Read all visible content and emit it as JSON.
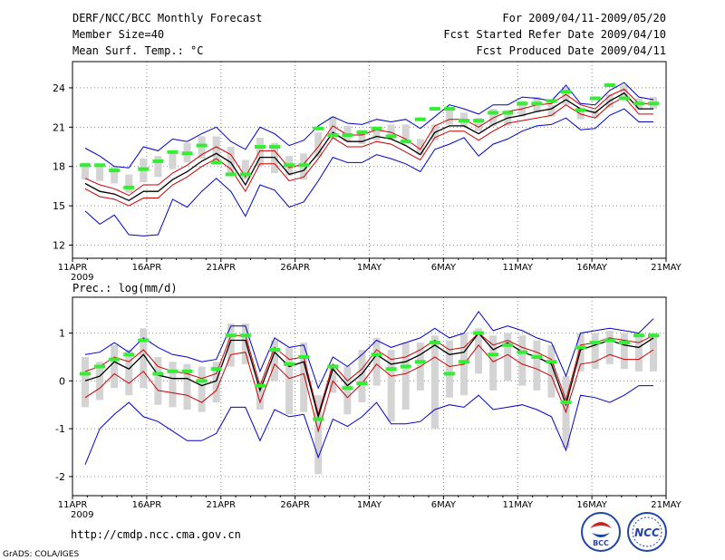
{
  "header": {
    "title": "DERF/NCC/BCC Monthly Forecast",
    "member_size": "Member Size=40",
    "variable": "Mean Surf. Temp.: °C",
    "forecast_period": "For 2009/04/11-2009/05/20",
    "fcst_started": "Fcst Started Refer Date 2009/04/10",
    "fcst_produced": "Fcst Produced Date 2009/04/11"
  },
  "footer": {
    "url": "http://cmdp.ncc.cma.gov.cn",
    "grads": "GrADS: COLA/IGES",
    "logo1_text": "BCC",
    "logo2_text": "NCC"
  },
  "colors": {
    "ens_mean": "#000000",
    "spread": "#cc0000",
    "extreme": "#0000cc",
    "box": "#d4d4d4",
    "marker": "#33ee33",
    "grid": "#888888"
  },
  "chart_data": [
    {
      "type": "line",
      "name": "temperature",
      "title": "Mean Surf. Temp.: °C",
      "xtick_labels": [
        "11APR",
        "16APR",
        "21APR",
        "26APR",
        "1MAY",
        "6MAY",
        "11MAY",
        "16MAY",
        "21MAY"
      ],
      "xtick_days": [
        0,
        5,
        10,
        15,
        20,
        25,
        30,
        35,
        40
      ],
      "year_label": "2009",
      "ylim": [
        11,
        26
      ],
      "yticks": [
        12,
        15,
        18,
        21,
        24
      ],
      "ytick_labels": [
        "12",
        "15",
        "18",
        "21",
        "24"
      ],
      "mean": [
        16.7,
        16.1,
        15.9,
        15.4,
        16.1,
        16.1,
        17.0,
        17.6,
        18.4,
        19.0,
        18.3,
        16.6,
        18.7,
        18.7,
        17.4,
        17.7,
        19.0,
        20.6,
        19.9,
        19.9,
        20.3,
        20.1,
        19.6,
        18.9,
        20.6,
        21.1,
        21.1,
        20.5,
        21.2,
        21.7,
        21.9,
        22.2,
        22.4,
        23.1,
        22.4,
        22.1,
        23.0,
        23.6,
        22.4,
        22.4
      ],
      "upper": [
        17.1,
        16.6,
        16.3,
        15.8,
        16.6,
        16.6,
        17.5,
        18.1,
        18.9,
        19.5,
        18.9,
        17.2,
        19.2,
        19.2,
        17.9,
        18.2,
        19.5,
        21.1,
        20.4,
        20.4,
        20.8,
        20.6,
        20.1,
        19.3,
        21.1,
        21.6,
        21.6,
        21.0,
        21.7,
        22.2,
        22.4,
        22.7,
        22.8,
        23.5,
        22.7,
        22.4,
        23.4,
        23.9,
        22.8,
        22.8
      ],
      "lower": [
        16.3,
        15.7,
        15.5,
        15.0,
        15.6,
        15.6,
        16.6,
        17.2,
        18.0,
        18.6,
        17.8,
        16.1,
        18.2,
        18.2,
        16.9,
        17.2,
        18.6,
        20.2,
        19.5,
        19.5,
        19.9,
        19.7,
        19.1,
        18.5,
        20.2,
        20.7,
        20.7,
        20.0,
        20.7,
        21.3,
        21.5,
        21.7,
        21.9,
        22.7,
        22.0,
        21.7,
        22.7,
        23.3,
        22.0,
        22.0
      ],
      "max": [
        19.4,
        18.8,
        18.0,
        17.9,
        19.5,
        19.2,
        20.1,
        19.9,
        20.5,
        21.0,
        19.9,
        19.3,
        21.0,
        20.5,
        19.6,
        20.0,
        21.1,
        21.8,
        21.3,
        21.2,
        21.6,
        21.4,
        21.6,
        20.9,
        21.8,
        22.7,
        22.4,
        22.0,
        22.7,
        22.7,
        23.3,
        23.2,
        23.0,
        24.2,
        22.8,
        22.7,
        23.8,
        24.4,
        23.3,
        23.1
      ],
      "min": [
        14.6,
        13.6,
        14.3,
        12.8,
        12.7,
        12.8,
        15.5,
        14.9,
        16.1,
        17.1,
        16.1,
        14.2,
        16.6,
        16.2,
        14.9,
        15.3,
        16.9,
        18.7,
        18.3,
        18.3,
        18.9,
        18.6,
        18.2,
        17.6,
        19.3,
        19.7,
        20.2,
        18.8,
        19.7,
        20.1,
        20.7,
        21.1,
        21.2,
        21.7,
        20.8,
        20.9,
        21.9,
        22.4,
        21.4,
        21.4
      ],
      "box_top": [
        18.3,
        18.2,
        18.0,
        17.4,
        18.6,
        18.8,
        19.1,
        19.8,
        20.3,
        20.3,
        19.5,
        18.5,
        20.2,
        19.8,
        18.8,
        19.0,
        20.6,
        21.8,
        21.1,
        20.8,
        21.0,
        21.2,
        21.2,
        20.1,
        21.2,
        22.5,
        22.1,
        21.7,
        22.4,
        22.3,
        23.0,
        23.3,
        22.7,
        24.0,
        22.5,
        22.3,
        23.5,
        24.2,
        23.2,
        23.3
      ],
      "box_bottom": [
        17.0,
        16.9,
        16.7,
        16.0,
        16.8,
        17.2,
        17.8,
        18.3,
        18.6,
        18.4,
        17.5,
        17.0,
        18.0,
        17.5,
        17.3,
        17.0,
        18.7,
        20.1,
        19.9,
        19.7,
        20.0,
        20.1,
        19.8,
        18.9,
        20.0,
        21.2,
        21.0,
        20.7,
        21.1,
        21.1,
        21.8,
        22.1,
        21.8,
        22.7,
        21.6,
        21.7,
        22.5,
        23.3,
        22.3,
        22.4
      ],
      "marker": [
        18.1,
        18.1,
        17.7,
        16.4,
        17.8,
        18.4,
        19.1,
        19.0,
        19.6,
        18.3,
        17.4,
        17.4,
        19.5,
        19.5,
        18.1,
        18.1,
        20.9,
        20.4,
        20.4,
        20.6,
        20.9,
        20.3,
        19.9,
        21.6,
        22.4,
        22.4,
        21.5,
        21.5,
        22.1,
        22.1,
        22.8,
        22.8,
        23.0,
        23.7,
        22.3,
        23.2,
        24.2,
        23.2,
        22.8,
        22.8
      ]
    },
    {
      "type": "line",
      "name": "precipitation",
      "title": "Prec.: log(mm/d)",
      "xtick_labels": [
        "11APR",
        "16APR",
        "21APR",
        "26APR",
        "1MAY",
        "6MAY",
        "11MAY",
        "16MAY",
        "21MAY"
      ],
      "xtick_days": [
        0,
        5,
        10,
        15,
        20,
        25,
        30,
        35,
        40
      ],
      "year_label": "2009",
      "ylim": [
        -2.4,
        1.75
      ],
      "yticks": [
        -2,
        -1,
        0,
        1
      ],
      "ytick_labels": [
        "-2",
        "-1",
        "0",
        "1"
      ],
      "mean": [
        0.0,
        0.1,
        0.4,
        0.25,
        0.55,
        0.12,
        0.05,
        0.05,
        -0.1,
        0.0,
        0.85,
        0.85,
        -0.2,
        0.6,
        0.3,
        0.4,
        -0.75,
        0.25,
        -0.1,
        0.15,
        0.55,
        0.35,
        0.4,
        0.55,
        0.75,
        0.55,
        0.6,
        1.0,
        0.65,
        0.8,
        0.6,
        0.5,
        0.35,
        -0.5,
        0.65,
        0.75,
        0.85,
        0.75,
        0.7,
        0.9
      ],
      "upper": [
        0.2,
        0.3,
        0.5,
        0.4,
        0.65,
        0.3,
        0.2,
        0.15,
        0.05,
        0.15,
        0.95,
        0.95,
        -0.1,
        0.7,
        0.45,
        0.5,
        -0.7,
        0.35,
        0.0,
        0.25,
        0.65,
        0.45,
        0.5,
        0.65,
        0.85,
        0.65,
        0.7,
        1.0,
        0.75,
        0.85,
        0.7,
        0.6,
        0.45,
        -0.4,
        0.75,
        0.8,
        0.9,
        0.85,
        0.8,
        0.95
      ],
      "lower": [
        -0.35,
        -0.15,
        0.15,
        -0.05,
        0.2,
        -0.2,
        -0.25,
        -0.3,
        -0.45,
        -0.2,
        0.55,
        0.6,
        -0.45,
        0.35,
        0.05,
        0.15,
        -1.05,
        0.0,
        -0.35,
        -0.05,
        0.35,
        0.1,
        0.15,
        0.3,
        0.5,
        0.3,
        0.35,
        0.75,
        0.4,
        0.55,
        0.35,
        0.25,
        0.1,
        -0.65,
        0.35,
        0.4,
        0.55,
        0.45,
        0.45,
        0.65
      ],
      "max": [
        0.55,
        0.6,
        0.8,
        0.6,
        0.9,
        0.7,
        0.55,
        0.5,
        0.4,
        0.45,
        1.15,
        1.15,
        0.2,
        0.9,
        0.7,
        0.75,
        -0.15,
        0.5,
        0.3,
        0.55,
        0.85,
        0.7,
        0.8,
        0.9,
        1.1,
        0.9,
        1.0,
        1.45,
        1.05,
        1.15,
        1.05,
        0.9,
        0.8,
        0.1,
        1.0,
        1.05,
        1.1,
        1.05,
        1.0,
        1.3
      ],
      "min": [
        -1.75,
        -1.0,
        -0.7,
        -0.45,
        -0.75,
        -0.85,
        -1.05,
        -1.25,
        -1.25,
        -1.1,
        -0.55,
        -0.55,
        -1.25,
        -0.6,
        -0.75,
        -0.7,
        -1.6,
        -0.8,
        -0.95,
        -0.75,
        -0.45,
        -0.9,
        -0.9,
        -0.85,
        -0.6,
        -0.5,
        -0.55,
        -0.3,
        -0.6,
        -0.55,
        -0.5,
        -0.6,
        -0.75,
        -1.45,
        -0.3,
        -0.35,
        -0.45,
        -0.3,
        -0.1,
        -0.1
      ],
      "box_top": [
        0.5,
        0.4,
        0.75,
        0.65,
        1.1,
        0.5,
        0.4,
        0.35,
        0.3,
        0.4,
        1.2,
        1.2,
        0.0,
        0.85,
        0.7,
        0.8,
        -0.3,
        0.35,
        0.3,
        0.65,
        0.9,
        0.65,
        0.8,
        0.8,
        0.95,
        0.85,
        1.0,
        1.1,
        0.95,
        1.0,
        0.95,
        0.85,
        0.75,
        0.1,
        1.0,
        1.0,
        1.05,
        1.0,
        1.0,
        1.0
      ],
      "box_bottom": [
        -0.55,
        -0.4,
        -0.15,
        -0.3,
        -0.15,
        -0.5,
        -0.55,
        -0.6,
        -0.65,
        -0.45,
        0.3,
        0.35,
        -0.6,
        0.0,
        -0.7,
        -0.65,
        -1.95,
        -0.25,
        -0.7,
        -0.45,
        -0.1,
        -0.85,
        -0.6,
        -0.2,
        -1.0,
        -0.35,
        -0.3,
        0.15,
        -0.2,
        0.0,
        -0.1,
        -0.2,
        -0.35,
        -1.4,
        0.2,
        0.25,
        0.35,
        0.25,
        0.2,
        0.2
      ],
      "marker": [
        0.15,
        0.3,
        0.45,
        0.55,
        0.85,
        0.15,
        0.2,
        0.2,
        0.0,
        0.25,
        0.95,
        0.95,
        -0.1,
        0.65,
        0.35,
        0.5,
        -0.8,
        0.3,
        -0.15,
        -0.05,
        0.55,
        0.25,
        0.3,
        0.4,
        0.8,
        0.15,
        0.4,
        1.0,
        0.55,
        0.75,
        0.6,
        0.5,
        0.4,
        -0.45,
        0.7,
        0.8,
        0.85,
        0.8,
        0.95,
        0.95
      ]
    }
  ]
}
